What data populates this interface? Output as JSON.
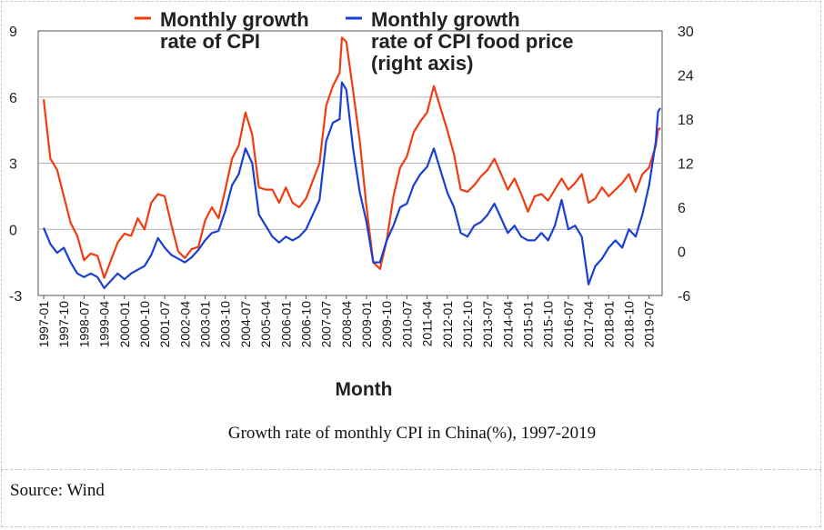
{
  "caption": "Growth rate of monthly CPI in China(%), 1997-2019",
  "source": "Source: Wind",
  "chart_data": {
    "type": "line",
    "xlabel": "Month",
    "x_ticks": [
      "1997-01",
      "1997-10",
      "1998-07",
      "1999-04",
      "2000-01",
      "2000-10",
      "2001-07",
      "2002-04",
      "2003-01",
      "2003-10",
      "2004-07",
      "2005-04",
      "2006-01",
      "2006-10",
      "2007-07",
      "2008-04",
      "2009-01",
      "2009-10",
      "2010-07",
      "2011-04",
      "2012-01",
      "2012-10",
      "2013-07",
      "2014-04",
      "2015-01",
      "2015-10",
      "2016-07",
      "2017-04",
      "2018-01",
      "2018-10",
      "2019-07"
    ],
    "y_left": {
      "ticks": [
        -3,
        0,
        3,
        6,
        9
      ],
      "ylim": [
        -3,
        9
      ]
    },
    "y_right": {
      "ticks": [
        -6,
        0,
        6,
        12,
        18,
        24,
        30
      ],
      "ylim": [
        -6,
        30
      ]
    },
    "grid": "horizontal",
    "legend_position": "top",
    "series": [
      {
        "name": "Monthly growth rate of CPI",
        "axis": "left",
        "color": "#f03c10",
        "points": [
          [
            "1997-01",
            5.9
          ],
          [
            "1997-04",
            3.2
          ],
          [
            "1997-07",
            2.7
          ],
          [
            "1997-10",
            1.5
          ],
          [
            "1998-01",
            0.3
          ],
          [
            "1998-04",
            -0.3
          ],
          [
            "1998-07",
            -1.4
          ],
          [
            "1998-10",
            -1.1
          ],
          [
            "1999-01",
            -1.2
          ],
          [
            "1999-04",
            -2.2
          ],
          [
            "1999-07",
            -1.4
          ],
          [
            "1999-10",
            -0.6
          ],
          [
            "2000-01",
            -0.2
          ],
          [
            "2000-04",
            -0.3
          ],
          [
            "2000-07",
            0.5
          ],
          [
            "2000-10",
            0.0
          ],
          [
            "2001-01",
            1.2
          ],
          [
            "2001-04",
            1.6
          ],
          [
            "2001-07",
            1.5
          ],
          [
            "2001-10",
            0.2
          ],
          [
            "2002-01",
            -1.0
          ],
          [
            "2002-04",
            -1.3
          ],
          [
            "2002-07",
            -0.9
          ],
          [
            "2002-10",
            -0.8
          ],
          [
            "2003-01",
            0.4
          ],
          [
            "2003-04",
            1.0
          ],
          [
            "2003-07",
            0.5
          ],
          [
            "2003-10",
            1.8
          ],
          [
            "2004-01",
            3.2
          ],
          [
            "2004-04",
            3.8
          ],
          [
            "2004-07",
            5.3
          ],
          [
            "2004-10",
            4.3
          ],
          [
            "2005-01",
            1.9
          ],
          [
            "2005-04",
            1.8
          ],
          [
            "2005-07",
            1.8
          ],
          [
            "2005-10",
            1.2
          ],
          [
            "2006-01",
            1.9
          ],
          [
            "2006-04",
            1.2
          ],
          [
            "2006-07",
            1.0
          ],
          [
            "2006-10",
            1.4
          ],
          [
            "2007-01",
            2.2
          ],
          [
            "2007-04",
            3.0
          ],
          [
            "2007-07",
            5.6
          ],
          [
            "2007-10",
            6.5
          ],
          [
            "2008-01",
            7.1
          ],
          [
            "2008-02",
            8.7
          ],
          [
            "2008-04",
            8.5
          ],
          [
            "2008-07",
            6.3
          ],
          [
            "2008-10",
            4.0
          ],
          [
            "2009-01",
            1.0
          ],
          [
            "2009-04",
            -1.5
          ],
          [
            "2009-07",
            -1.8
          ],
          [
            "2009-10",
            -0.5
          ],
          [
            "2010-01",
            1.5
          ],
          [
            "2010-04",
            2.8
          ],
          [
            "2010-07",
            3.3
          ],
          [
            "2010-10",
            4.4
          ],
          [
            "2011-01",
            4.9
          ],
          [
            "2011-04",
            5.3
          ],
          [
            "2011-07",
            6.5
          ],
          [
            "2011-10",
            5.5
          ],
          [
            "2012-01",
            4.5
          ],
          [
            "2012-04",
            3.4
          ],
          [
            "2012-07",
            1.8
          ],
          [
            "2012-10",
            1.7
          ],
          [
            "2013-01",
            2.0
          ],
          [
            "2013-04",
            2.4
          ],
          [
            "2013-07",
            2.7
          ],
          [
            "2013-10",
            3.2
          ],
          [
            "2014-01",
            2.5
          ],
          [
            "2014-04",
            1.8
          ],
          [
            "2014-07",
            2.3
          ],
          [
            "2014-10",
            1.6
          ],
          [
            "2015-01",
            0.8
          ],
          [
            "2015-04",
            1.5
          ],
          [
            "2015-07",
            1.6
          ],
          [
            "2015-10",
            1.3
          ],
          [
            "2016-01",
            1.8
          ],
          [
            "2016-04",
            2.3
          ],
          [
            "2016-07",
            1.8
          ],
          [
            "2016-10",
            2.1
          ],
          [
            "2017-01",
            2.5
          ],
          [
            "2017-04",
            1.2
          ],
          [
            "2017-07",
            1.4
          ],
          [
            "2017-10",
            1.9
          ],
          [
            "2018-01",
            1.5
          ],
          [
            "2018-04",
            1.8
          ],
          [
            "2018-07",
            2.1
          ],
          [
            "2018-10",
            2.5
          ],
          [
            "2019-01",
            1.7
          ],
          [
            "2019-04",
            2.5
          ],
          [
            "2019-07",
            2.8
          ],
          [
            "2019-10",
            3.8
          ],
          [
            "2019-11",
            4.5
          ],
          [
            "2019-12",
            4.6
          ]
        ]
      },
      {
        "name": "Monthly growth rate of CPI food price (right axis)",
        "axis": "right",
        "color": "#1a3fd4",
        "points": [
          [
            "1997-01",
            3.2
          ],
          [
            "1997-04",
            1.0
          ],
          [
            "1997-07",
            -0.2
          ],
          [
            "1997-10",
            0.5
          ],
          [
            "1998-01",
            -1.5
          ],
          [
            "1998-04",
            -3.0
          ],
          [
            "1998-07",
            -3.5
          ],
          [
            "1998-10",
            -3.0
          ],
          [
            "1999-01",
            -3.5
          ],
          [
            "1999-04",
            -5.0
          ],
          [
            "1999-07",
            -4.0
          ],
          [
            "1999-10",
            -3.0
          ],
          [
            "2000-01",
            -3.8
          ],
          [
            "2000-04",
            -3.0
          ],
          [
            "2000-07",
            -2.5
          ],
          [
            "2000-10",
            -2.0
          ],
          [
            "2001-01",
            -0.5
          ],
          [
            "2001-04",
            1.8
          ],
          [
            "2001-07",
            0.5
          ],
          [
            "2001-10",
            -0.5
          ],
          [
            "2002-01",
            -1.0
          ],
          [
            "2002-04",
            -1.5
          ],
          [
            "2002-07",
            -0.8
          ],
          [
            "2002-10",
            0.2
          ],
          [
            "2003-01",
            1.5
          ],
          [
            "2003-04",
            2.5
          ],
          [
            "2003-07",
            2.8
          ],
          [
            "2003-10",
            5.5
          ],
          [
            "2004-01",
            9.0
          ],
          [
            "2004-04",
            10.5
          ],
          [
            "2004-07",
            14.0
          ],
          [
            "2004-10",
            12.0
          ],
          [
            "2005-01",
            5.0
          ],
          [
            "2005-04",
            3.5
          ],
          [
            "2005-07",
            2.0
          ],
          [
            "2005-10",
            1.2
          ],
          [
            "2006-01",
            2.0
          ],
          [
            "2006-04",
            1.5
          ],
          [
            "2006-07",
            2.0
          ],
          [
            "2006-10",
            3.0
          ],
          [
            "2007-01",
            5.0
          ],
          [
            "2007-04",
            7.0
          ],
          [
            "2007-07",
            15.0
          ],
          [
            "2007-10",
            17.5
          ],
          [
            "2008-01",
            18.0
          ],
          [
            "2008-02",
            23.0
          ],
          [
            "2008-04",
            22.0
          ],
          [
            "2008-07",
            14.0
          ],
          [
            "2008-10",
            8.0
          ],
          [
            "2009-01",
            4.0
          ],
          [
            "2009-04",
            -1.5
          ],
          [
            "2009-07",
            -1.5
          ],
          [
            "2009-10",
            1.5
          ],
          [
            "2010-01",
            3.5
          ],
          [
            "2010-04",
            6.0
          ],
          [
            "2010-07",
            6.5
          ],
          [
            "2010-10",
            9.0
          ],
          [
            "2011-01",
            10.5
          ],
          [
            "2011-04",
            11.5
          ],
          [
            "2011-07",
            14.0
          ],
          [
            "2011-10",
            11.0
          ],
          [
            "2012-01",
            8.0
          ],
          [
            "2012-04",
            6.0
          ],
          [
            "2012-07",
            2.5
          ],
          [
            "2012-10",
            2.0
          ],
          [
            "2013-01",
            3.5
          ],
          [
            "2013-04",
            4.0
          ],
          [
            "2013-07",
            5.0
          ],
          [
            "2013-10",
            6.5
          ],
          [
            "2014-01",
            4.5
          ],
          [
            "2014-04",
            2.5
          ],
          [
            "2014-07",
            3.5
          ],
          [
            "2014-10",
            2.0
          ],
          [
            "2015-01",
            1.5
          ],
          [
            "2015-04",
            1.5
          ],
          [
            "2015-07",
            2.5
          ],
          [
            "2015-10",
            1.5
          ],
          [
            "2016-01",
            3.5
          ],
          [
            "2016-04",
            7.0
          ],
          [
            "2016-07",
            3.0
          ],
          [
            "2016-10",
            3.5
          ],
          [
            "2017-01",
            2.0
          ],
          [
            "2017-04",
            -4.5
          ],
          [
            "2017-07",
            -2.0
          ],
          [
            "2017-10",
            -1.0
          ],
          [
            "2018-01",
            0.5
          ],
          [
            "2018-04",
            1.5
          ],
          [
            "2018-07",
            0.5
          ],
          [
            "2018-10",
            3.0
          ],
          [
            "2019-01",
            2.0
          ],
          [
            "2019-04",
            5.0
          ],
          [
            "2019-07",
            9.0
          ],
          [
            "2019-10",
            15.0
          ],
          [
            "2019-11",
            19.0
          ],
          [
            "2019-12",
            19.5
          ]
        ]
      }
    ]
  }
}
